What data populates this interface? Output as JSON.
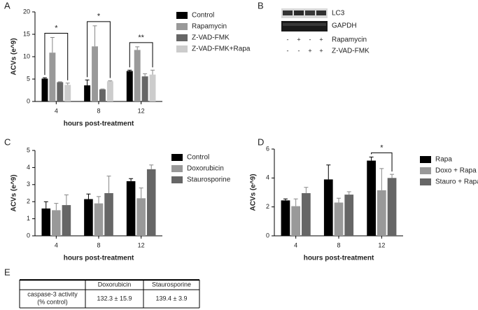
{
  "panels": [
    "A",
    "B",
    "C",
    "D",
    "E"
  ],
  "chart_data": [
    {
      "type": "bar",
      "ylabel": "ACVs (e^9)",
      "xlabel": "hours post-treatment",
      "categories": [
        "4",
        "8",
        "12"
      ],
      "ylim": [
        0,
        20
      ],
      "yticks": [
        0,
        5,
        10,
        15,
        20
      ],
      "series": [
        {
          "name": "Control",
          "color": "#000000",
          "values": [
            5.1,
            3.6,
            6.8
          ],
          "errors": [
            0.2,
            1.2,
            0.2
          ]
        },
        {
          "name": "Rapamycin",
          "color": "#999999",
          "values": [
            10.9,
            12.3,
            11.5
          ],
          "errors": [
            3.4,
            4.6,
            0.7
          ]
        },
        {
          "name": "Z-VAD-FMK",
          "color": "#666666",
          "values": [
            4.3,
            2.7,
            5.6
          ],
          "errors": [
            0.1,
            0.1,
            0.6
          ]
        },
        {
          "name": "Z-VAD-FMK+Rapa",
          "color": "#cccccc",
          "values": [
            3.7,
            4.5,
            6.0
          ],
          "errors": [
            0.4,
            0.1,
            1.0
          ]
        }
      ],
      "annotations": [
        {
          "text": "*",
          "category": "4",
          "between": [
            "Control",
            "Z-VAD-FMK+Rapa"
          ]
        },
        {
          "text": "*",
          "category": "8",
          "between": [
            "Control",
            "Z-VAD-FMK+Rapa"
          ]
        },
        {
          "text": "**",
          "category": "12",
          "between": [
            "Control",
            "Z-VAD-FMK+Rapa"
          ]
        }
      ]
    },
    {
      "type": "bar",
      "ylabel": "ACVs (e^9)",
      "xlabel": "hours post-treatment",
      "categories": [
        "4",
        "8",
        "12"
      ],
      "ylim": [
        0,
        5
      ],
      "yticks": [
        0,
        1,
        2,
        3,
        4,
        5
      ],
      "series": [
        {
          "name": "Control",
          "color": "#000000",
          "values": [
            1.6,
            2.15,
            3.2
          ],
          "errors": [
            0.4,
            0.3,
            0.15
          ]
        },
        {
          "name": "Doxorubicin",
          "color": "#999999",
          "values": [
            1.5,
            1.9,
            2.2
          ],
          "errors": [
            0.4,
            0.4,
            0.6
          ]
        },
        {
          "name": "Staurosporine",
          "color": "#666666",
          "values": [
            1.8,
            2.5,
            3.9
          ],
          "errors": [
            0.6,
            1.0,
            0.25
          ]
        }
      ],
      "annotations": []
    },
    {
      "type": "bar",
      "ylabel": "ACVs (e^9)",
      "xlabel": "hours post-treatment",
      "categories": [
        "4",
        "8",
        "12"
      ],
      "ylim": [
        0,
        6
      ],
      "yticks": [
        0,
        2,
        4,
        6
      ],
      "series": [
        {
          "name": "Rapa",
          "color": "#000000",
          "values": [
            2.45,
            3.9,
            5.2
          ],
          "errors": [
            0.1,
            1.0,
            0.25
          ]
        },
        {
          "name": "Doxo + Rapa",
          "color": "#999999",
          "values": [
            2.05,
            2.3,
            3.15
          ],
          "errors": [
            0.5,
            0.3,
            1.5
          ]
        },
        {
          "name": "Stauro + Rapa",
          "color": "#666666",
          "values": [
            2.95,
            2.85,
            4.0
          ],
          "errors": [
            0.4,
            0.2,
            0.25
          ]
        }
      ],
      "annotations": [
        {
          "text": "*",
          "category": "12",
          "between": [
            "Rapa",
            "Stauro + Rapa"
          ]
        }
      ]
    }
  ],
  "blot": {
    "bands": [
      "LC3",
      "GAPDH"
    ],
    "conditions": [
      {
        "name": "Rapamycin",
        "signs": [
          "-",
          "+",
          "-",
          "+"
        ]
      },
      {
        "name": "Z-VAD-FMK",
        "signs": [
          "-",
          "-",
          "+",
          "+"
        ]
      }
    ]
  },
  "table": {
    "header": [
      "Doxorubicin",
      "Staurosporine"
    ],
    "rows": [
      [
        [
          "caspase-3 activity",
          "(% control)"
        ],
        "132.3 ± 15.9",
        "139.4 ± 3.9"
      ]
    ]
  }
}
